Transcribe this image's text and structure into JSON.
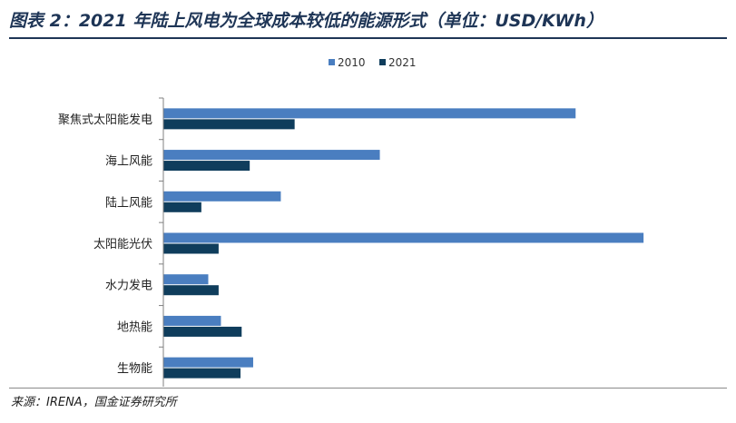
{
  "title": "图表 2：2021 年陆上风电为全球成本较低的能源形式（单位：USD/KWh）",
  "source": "来源：IRENA，国金证券研究所",
  "chart_data": {
    "type": "bar",
    "orientation": "horizontal",
    "categories": [
      "聚焦式太阳能发电",
      "海上风能",
      "陆上风能",
      "太阳能光伏",
      "水力发电",
      "地热能",
      "生物能"
    ],
    "series": [
      {
        "name": "2010",
        "color": "#4a7ec0",
        "values": [
          0.358,
          0.188,
          0.102,
          0.417,
          0.039,
          0.05,
          0.078
        ]
      },
      {
        "name": "2021",
        "color": "#0f3d5c",
        "values": [
          0.114,
          0.075,
          0.033,
          0.048,
          0.048,
          0.068,
          0.067
        ]
      }
    ],
    "xlim": [
      0,
      0.45
    ],
    "xticks": [
      "0",
      "0.05",
      "0.1",
      "0.15",
      "0.2",
      "0.25",
      "0.3",
      "0.35",
      "0.4",
      "0.45"
    ],
    "legend_position": "top-center",
    "grid": false
  }
}
